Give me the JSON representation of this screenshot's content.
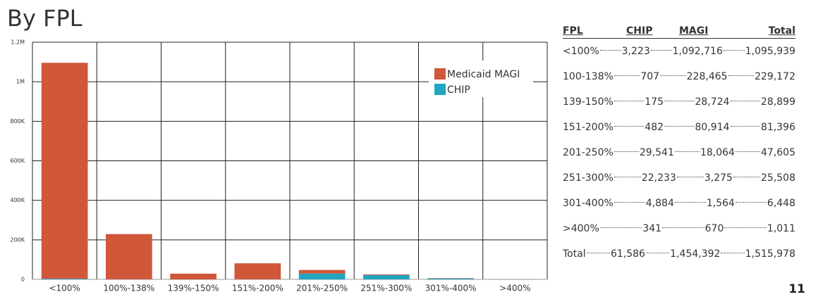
{
  "chart_data": {
    "type": "stacked_bar",
    "title": "By FPL",
    "categories": [
      "<100%",
      "100%-138%",
      "139%-150%",
      "151%-200%",
      "201%-250%",
      "251%-300%",
      "301%-400%",
      ">400%"
    ],
    "series": [
      {
        "name": "Medicaid MAGI",
        "color": "#d0573a",
        "values": [
          1092716,
          228465,
          28724,
          80914,
          18064,
          3275,
          1564,
          670
        ]
      },
      {
        "name": "CHIP",
        "color": "#21a5c0",
        "values": [
          3223,
          707,
          175,
          482,
          29541,
          22233,
          4884,
          341
        ]
      }
    ],
    "ylim": [
      0,
      1200000
    ],
    "yticks": [
      {
        "value": 0,
        "label": "0"
      },
      {
        "value": 200000,
        "label": "200K"
      },
      {
        "value": 400000,
        "label": "400K"
      },
      {
        "value": 600000,
        "label": "600K"
      },
      {
        "value": 800000,
        "label": "800K"
      },
      {
        "value": 1000000,
        "label": "1M"
      },
      {
        "value": 1200000,
        "label": "1.2M"
      }
    ],
    "grid": true,
    "legend": "upper right"
  },
  "table": {
    "header": [
      "FPL",
      "CHIP",
      "MAGI",
      "Total"
    ],
    "rows": [
      [
        "<100%",
        "3,223",
        "1,092,716",
        "1,095,939"
      ],
      [
        "100-138%",
        "707",
        "228,465",
        "229,172"
      ],
      [
        "139-150%",
        "175",
        "28,724",
        "28,899"
      ],
      [
        "151-200%",
        "482",
        "80,914",
        "81,396"
      ],
      [
        "201-250%",
        "29,541",
        "18,064",
        "47,605"
      ],
      [
        "251-300%",
        "22,233",
        "3,275",
        "25,508"
      ],
      [
        "301-400%",
        "4,884",
        "1,564",
        "6,448"
      ],
      [
        ">400%",
        "341",
        "670",
        "1,011"
      ],
      [
        "Total",
        "61,586",
        "1,454,392",
        "1,515,978"
      ]
    ]
  },
  "page_number": "11"
}
